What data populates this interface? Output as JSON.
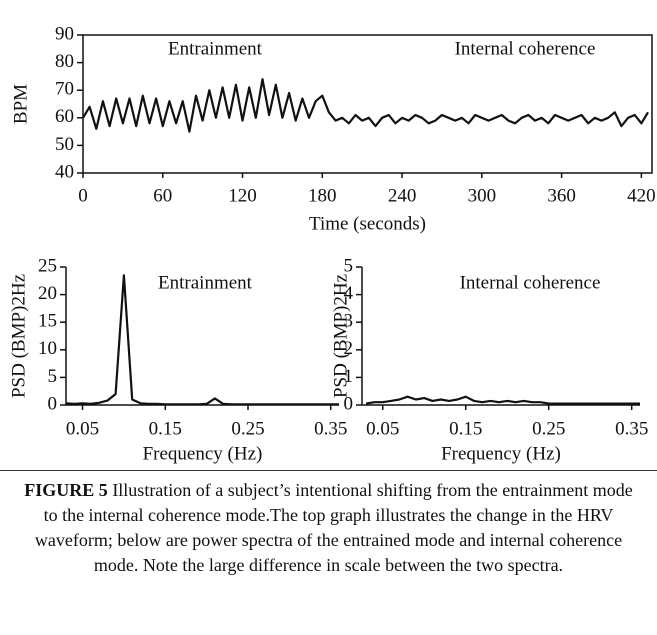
{
  "chart_data": [
    {
      "type": "line",
      "ylabel": "BPM",
      "xlabel": "Time (seconds)",
      "annotations": [
        "Entrainment",
        "Internal coherence"
      ],
      "xlim": [
        0,
        428
      ],
      "ylim": [
        40,
        90
      ],
      "xticks": [
        0,
        60,
        120,
        180,
        240,
        300,
        360,
        420
      ],
      "yticks": [
        40,
        50,
        60,
        70,
        80,
        90
      ],
      "color": "#111111",
      "x": [
        0,
        5,
        10,
        15,
        20,
        25,
        30,
        35,
        40,
        45,
        50,
        55,
        60,
        65,
        70,
        75,
        80,
        85,
        90,
        95,
        100,
        105,
        110,
        115,
        120,
        125,
        130,
        135,
        140,
        145,
        150,
        155,
        160,
        165,
        170,
        175,
        180,
        185,
        190,
        195,
        200,
        205,
        210,
        215,
        220,
        225,
        230,
        235,
        240,
        245,
        250,
        255,
        260,
        265,
        270,
        275,
        280,
        285,
        290,
        295,
        300,
        305,
        310,
        315,
        320,
        325,
        330,
        335,
        340,
        345,
        350,
        355,
        360,
        365,
        370,
        375,
        380,
        385,
        390,
        395,
        400,
        405,
        410,
        415,
        420,
        425
      ],
      "values": [
        60,
        64,
        56,
        66,
        57,
        67,
        58,
        67,
        57,
        68,
        58,
        67,
        57,
        66,
        58,
        66,
        55,
        68,
        59,
        70,
        60,
        71,
        60,
        72,
        59,
        71,
        60,
        74,
        61,
        72,
        60,
        69,
        59,
        67,
        60,
        66,
        68,
        62,
        59,
        60,
        58,
        61,
        59,
        60,
        57,
        60,
        61,
        58,
        60,
        59,
        61,
        60,
        58,
        59,
        61,
        60,
        59,
        60,
        58,
        61,
        60,
        59,
        60,
        61,
        59,
        58,
        60,
        61,
        59,
        60,
        58,
        61,
        60,
        59,
        60,
        61,
        58,
        60,
        59,
        60,
        62,
        57,
        60,
        61,
        58,
        62
      ]
    },
    {
      "type": "line",
      "ylabel": "PSD (BMP)2Hz",
      "xlabel": "Frequency (Hz)",
      "annotations": [
        "Entrainment"
      ],
      "xlim": [
        0.03,
        0.36
      ],
      "ylim": [
        0,
        25
      ],
      "xticks": [
        0.05,
        0.15,
        0.25,
        0.35
      ],
      "yticks": [
        0,
        5,
        10,
        15,
        20,
        25
      ],
      "color": "#111111",
      "x": [
        0.03,
        0.04,
        0.05,
        0.06,
        0.07,
        0.08,
        0.09,
        0.1,
        0.11,
        0.12,
        0.13,
        0.14,
        0.15,
        0.16,
        0.17,
        0.18,
        0.19,
        0.2,
        0.21,
        0.22,
        0.23,
        0.24,
        0.25,
        0.26,
        0.27,
        0.28,
        0.29,
        0.3,
        0.31,
        0.32,
        0.33,
        0.34,
        0.35,
        0.36
      ],
      "values": [
        0.3,
        0.2,
        0.3,
        0.2,
        0.4,
        0.8,
        2,
        23.5,
        1,
        0.3,
        0.2,
        0.2,
        0.1,
        0.1,
        0.1,
        0.1,
        0.1,
        0.2,
        1.2,
        0.2,
        0.1,
        0.1,
        0.1,
        0.1,
        0.1,
        0.1,
        0.1,
        0.1,
        0.1,
        0.1,
        0.1,
        0.1,
        0.1,
        0.1
      ]
    },
    {
      "type": "line",
      "ylabel": "PSD (BMP)2Hz",
      "xlabel": "Frequency (Hz)",
      "annotations": [
        "Internal coherence"
      ],
      "xlim": [
        0.025,
        0.36
      ],
      "ylim": [
        0,
        5
      ],
      "xticks": [
        0.05,
        0.15,
        0.25,
        0.35
      ],
      "yticks": [
        0,
        1,
        2,
        3,
        4,
        5
      ],
      "color": "#111111",
      "x": [
        0.03,
        0.04,
        0.05,
        0.06,
        0.07,
        0.08,
        0.09,
        0.1,
        0.11,
        0.12,
        0.13,
        0.14,
        0.15,
        0.16,
        0.17,
        0.18,
        0.19,
        0.2,
        0.21,
        0.22,
        0.23,
        0.24,
        0.25,
        0.26,
        0.27,
        0.28,
        0.29,
        0.3,
        0.31,
        0.32,
        0.33,
        0.34,
        0.35,
        0.36
      ],
      "values": [
        0.05,
        0.1,
        0.1,
        0.15,
        0.2,
        0.3,
        0.2,
        0.25,
        0.15,
        0.2,
        0.15,
        0.2,
        0.3,
        0.15,
        0.1,
        0.15,
        0.1,
        0.15,
        0.1,
        0.15,
        0.1,
        0.1,
        0.05,
        0.05,
        0.05,
        0.05,
        0.05,
        0.05,
        0.05,
        0.05,
        0.05,
        0.05,
        0.05,
        0.05
      ]
    }
  ],
  "caption": {
    "label": "FIGURE 5",
    "text": "Illustration of a subject’s intentional shifting from the entrainment mode to the internal coherence mode.The top graph illustrates the change in the HRV waveform; below are power spectra of the entrained mode and internal coherence mode. Note the large difference in scale between the two spectra."
  }
}
